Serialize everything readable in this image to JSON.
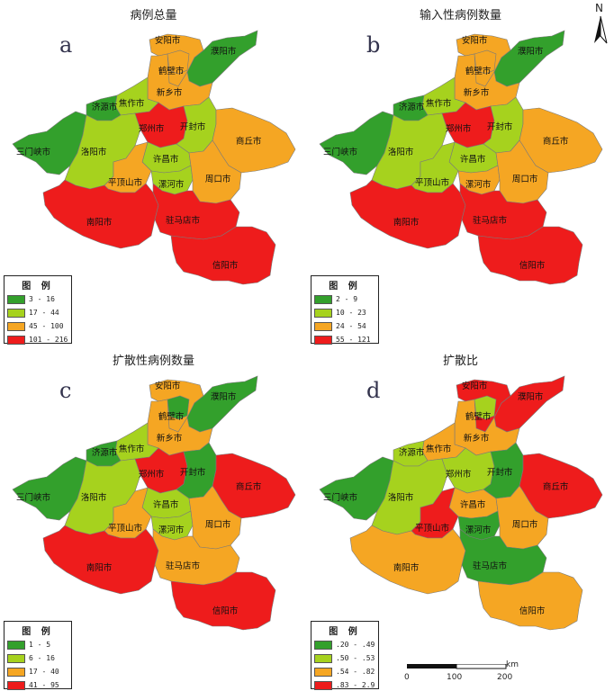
{
  "north_arrow": "N",
  "colors": {
    "c1": "#33a02c",
    "c2": "#a6d21e",
    "c3": "#f5a623",
    "c4": "#ee1c1c"
  },
  "legend_title": "图 例",
  "panels": [
    {
      "letter": "a",
      "title": "病例总量",
      "legend": [
        "3 - 16",
        "17 - 44",
        "45 - 100",
        "101 - 216"
      ],
      "classes": {
        "anyang": 3,
        "hebi": 3,
        "puyang": 1,
        "xinxiang": 3,
        "jiaozuo": 2,
        "jiyuan": 1,
        "sanmenxia": 1,
        "luoyang": 2,
        "zhengzhou": 4,
        "kaifeng": 2,
        "shangqiu": 3,
        "xuchang": 2,
        "pingdingshan": 3,
        "luohe": 2,
        "zhoukou": 3,
        "nanyang": 4,
        "zhumadian": 4,
        "xinyang": 4
      }
    },
    {
      "letter": "b",
      "title": "输入性病例数量",
      "legend": [
        "2 - 9",
        "10 - 23",
        "24 - 54",
        "55 - 121"
      ],
      "classes": {
        "anyang": 3,
        "hebi": 3,
        "puyang": 1,
        "xinxiang": 3,
        "jiaozuo": 2,
        "jiyuan": 1,
        "sanmenxia": 1,
        "luoyang": 2,
        "zhengzhou": 4,
        "kaifeng": 2,
        "shangqiu": 3,
        "xuchang": 2,
        "pingdingshan": 2,
        "luohe": 3,
        "zhoukou": 3,
        "nanyang": 4,
        "zhumadian": 4,
        "xinyang": 4
      }
    },
    {
      "letter": "c",
      "title": "扩散性病例数量",
      "legend": [
        "1 - 5",
        "6 - 16",
        "17 - 40",
        "41 - 95"
      ],
      "classes": {
        "anyang": 3,
        "hebi": 1,
        "puyang": 1,
        "xinxiang": 3,
        "jiaozuo": 2,
        "jiyuan": 1,
        "sanmenxia": 1,
        "luoyang": 2,
        "zhengzhou": 4,
        "kaifeng": 1,
        "shangqiu": 4,
        "xuchang": 2,
        "pingdingshan": 3,
        "luohe": 2,
        "zhoukou": 3,
        "nanyang": 4,
        "zhumadian": 3,
        "xinyang": 4
      }
    },
    {
      "letter": "d",
      "title": "扩散比",
      "legend": [
        ".20 - .49",
        ".50 - .53",
        ".54 - .82",
        ".83 - 2.9"
      ],
      "classes": {
        "anyang": 4,
        "hebi": 2,
        "puyang": 4,
        "xinxiang": 3,
        "jiaozuo": 3,
        "jiyuan": 2,
        "sanmenxia": 1,
        "luoyang": 2,
        "zhengzhou": 2,
        "kaifeng": 1,
        "shangqiu": 4,
        "xuchang": 3,
        "pingdingshan": 4,
        "luohe": 1,
        "zhoukou": 3,
        "nanyang": 3,
        "zhumadian": 1,
        "xinyang": 3
      }
    }
  ],
  "cities": {
    "anyang": "安阳市",
    "hebi": "鹤壁市",
    "puyang": "濮阳市",
    "xinxiang": "新乡市",
    "jiaozuo": "焦作市",
    "jiyuan": "济源市",
    "sanmenxia": "三门峡市",
    "luoyang": "洛阳市",
    "zhengzhou": "郑州市",
    "kaifeng": "开封市",
    "shangqiu": "商丘市",
    "xuchang": "许昌市",
    "pingdingshan": "平顶山市",
    "luohe": "漯河市",
    "zhoukou": "周口市",
    "nanyang": "南阳市",
    "zhumadian": "驻马店市",
    "xinyang": "信阳市"
  },
  "scale": {
    "unit": "km",
    "ticks": [
      "0",
      "100",
      "200"
    ]
  }
}
